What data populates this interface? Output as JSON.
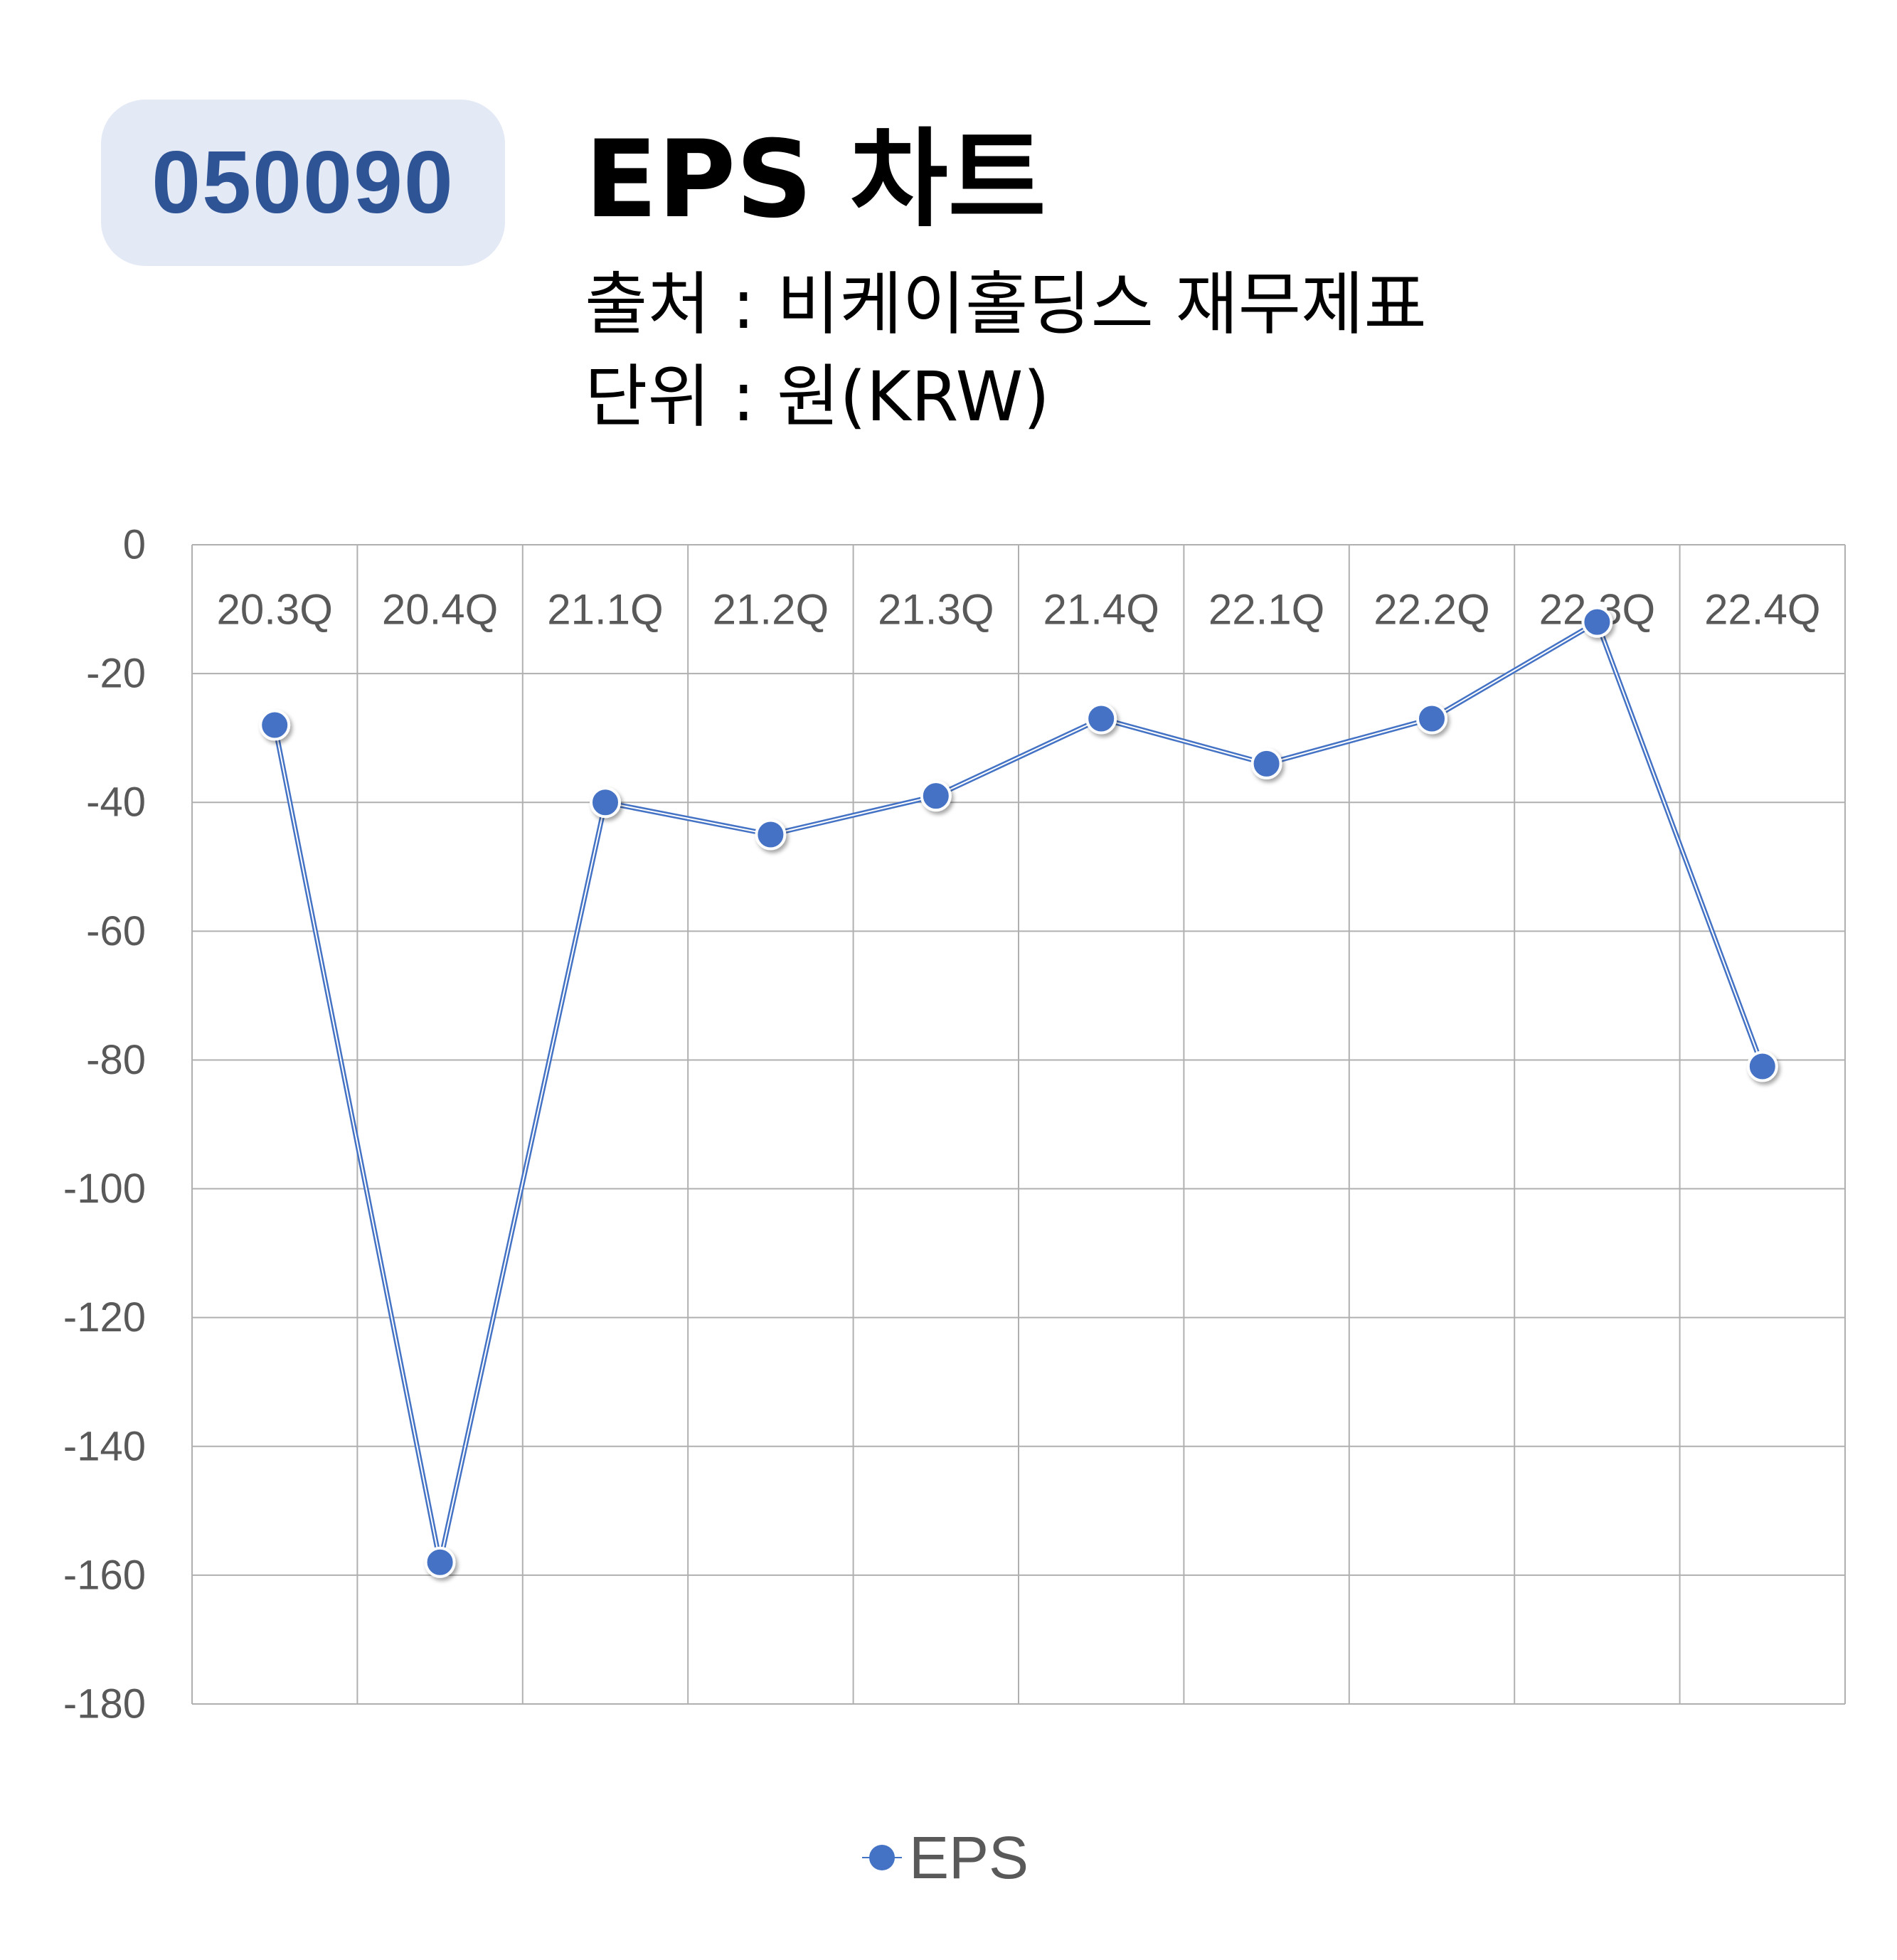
{
  "header": {
    "code": "050090",
    "title": "EPS 차트",
    "source": "출처 : 비케이홀딩스 재무제표",
    "unit": "단위 : 원(KRW)"
  },
  "colors": {
    "series": "#4472c4",
    "badge_bg": "#e3e9f5",
    "badge_text": "#2f5496",
    "grid": "#b0b0b0",
    "tick_text": "#595959"
  },
  "chart_data": {
    "type": "line",
    "categories": [
      "20.3Q",
      "20.4Q",
      "21.1Q",
      "21.2Q",
      "21.3Q",
      "21.4Q",
      "22.1Q",
      "22.2Q",
      "22.3Q",
      "22.4Q"
    ],
    "series": [
      {
        "name": "EPS",
        "values": [
          -28,
          -158,
          -40,
          -45,
          -39,
          -27,
          -34,
          -27,
          -12,
          -81
        ]
      }
    ],
    "ylim": [
      -180,
      0
    ],
    "yticks": [
      0,
      -20,
      -40,
      -60,
      -80,
      -100,
      -120,
      -140,
      -160,
      -180
    ],
    "category_labels_position": "top",
    "grid": true,
    "legend": {
      "position": "bottom",
      "entries": [
        "EPS"
      ]
    }
  }
}
